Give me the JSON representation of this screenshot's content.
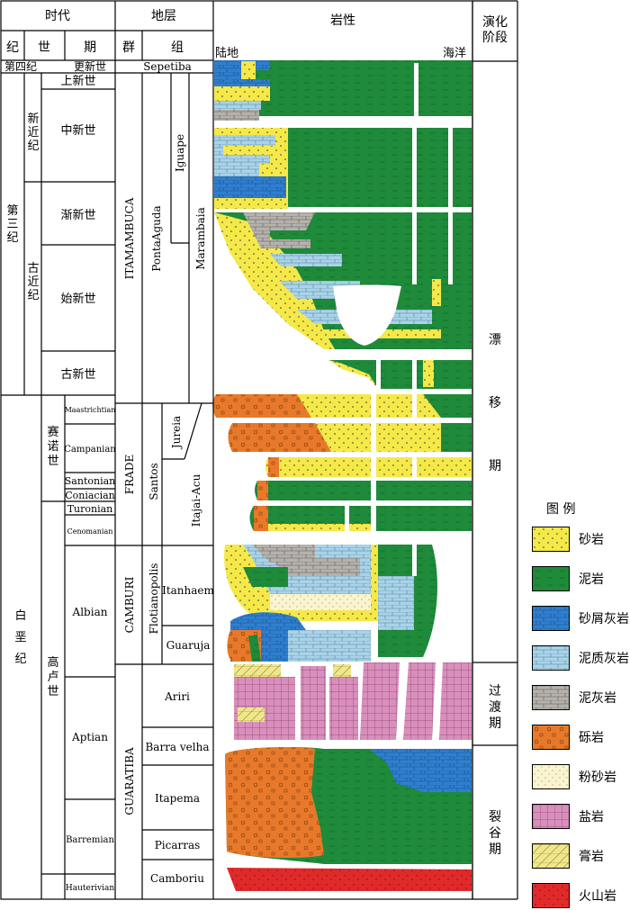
{
  "headers": {
    "era": "时代",
    "strata": "地层",
    "lithology": "岩性",
    "stage": "演化\n阶段",
    "system": "纪",
    "series": "世",
    "period": "期",
    "group": "群",
    "formation": "组",
    "land": "陆地",
    "ocean": "海洋"
  },
  "systems": [
    "第四纪",
    "第三纪",
    "白垩纪"
  ],
  "subsystems": [
    "新近纪",
    "古近纪"
  ],
  "series": [
    "更新世",
    "上新世",
    "中新世",
    "渐新世",
    "始新世",
    "古新世",
    "赛诺世",
    "高卢世"
  ],
  "stages": [
    "Maastrichtian",
    "Campanian",
    "Santonian",
    "Coniacian",
    "Turonian",
    "Cenomanian",
    "Albian",
    "Aptian",
    "Barremian",
    "Hauterivian"
  ],
  "groups": [
    "ITAMAMBUCA",
    "FRADE",
    "CAMBURI",
    "GUARATIBA"
  ],
  "formations": [
    "Sepetiba",
    "Iguape",
    "PontaAguda",
    "Marambaia",
    "Jureia",
    "Santos",
    "Itajai-Acu",
    "Itanhaem",
    "Flotianopolis",
    "Guaruja",
    "Ariri",
    "Barra velha",
    "Itapema",
    "Picarras",
    "Camboriu"
  ],
  "evolution": [
    "漂\n移\n期",
    "过\n渡\n期",
    "裂\n谷\n期"
  ],
  "legend": {
    "title": "图 例",
    "items": [
      {
        "label": "砂岩",
        "pattern": "sandstone"
      },
      {
        "label": "泥岩",
        "pattern": "mudstone"
      },
      {
        "label": "砂屑灰岩",
        "pattern": "calcarenite"
      },
      {
        "label": "泥质灰岩",
        "pattern": "marly-limestone"
      },
      {
        "label": "泥灰岩",
        "pattern": "marl"
      },
      {
        "label": "砾岩",
        "pattern": "conglomerate"
      },
      {
        "label": "粉砂岩",
        "pattern": "siltstone"
      },
      {
        "label": "盐岩",
        "pattern": "salt"
      },
      {
        "label": "膏岩",
        "pattern": "gypsum"
      },
      {
        "label": "火山岩",
        "pattern": "volcanic"
      }
    ]
  },
  "colors": {
    "sandstone": "#f5e94a",
    "mudstone": "#1e8a3a",
    "calcarenite": "#2f7fd0",
    "marly-limestone": "#a9d3e8",
    "marl": "#b5b2ad",
    "conglomerate": "#e8792a",
    "siltstone": "#faf5cf",
    "salt": "#d98fbb",
    "gypsum": "#f0e68c",
    "volcanic": "#e02a2a"
  }
}
